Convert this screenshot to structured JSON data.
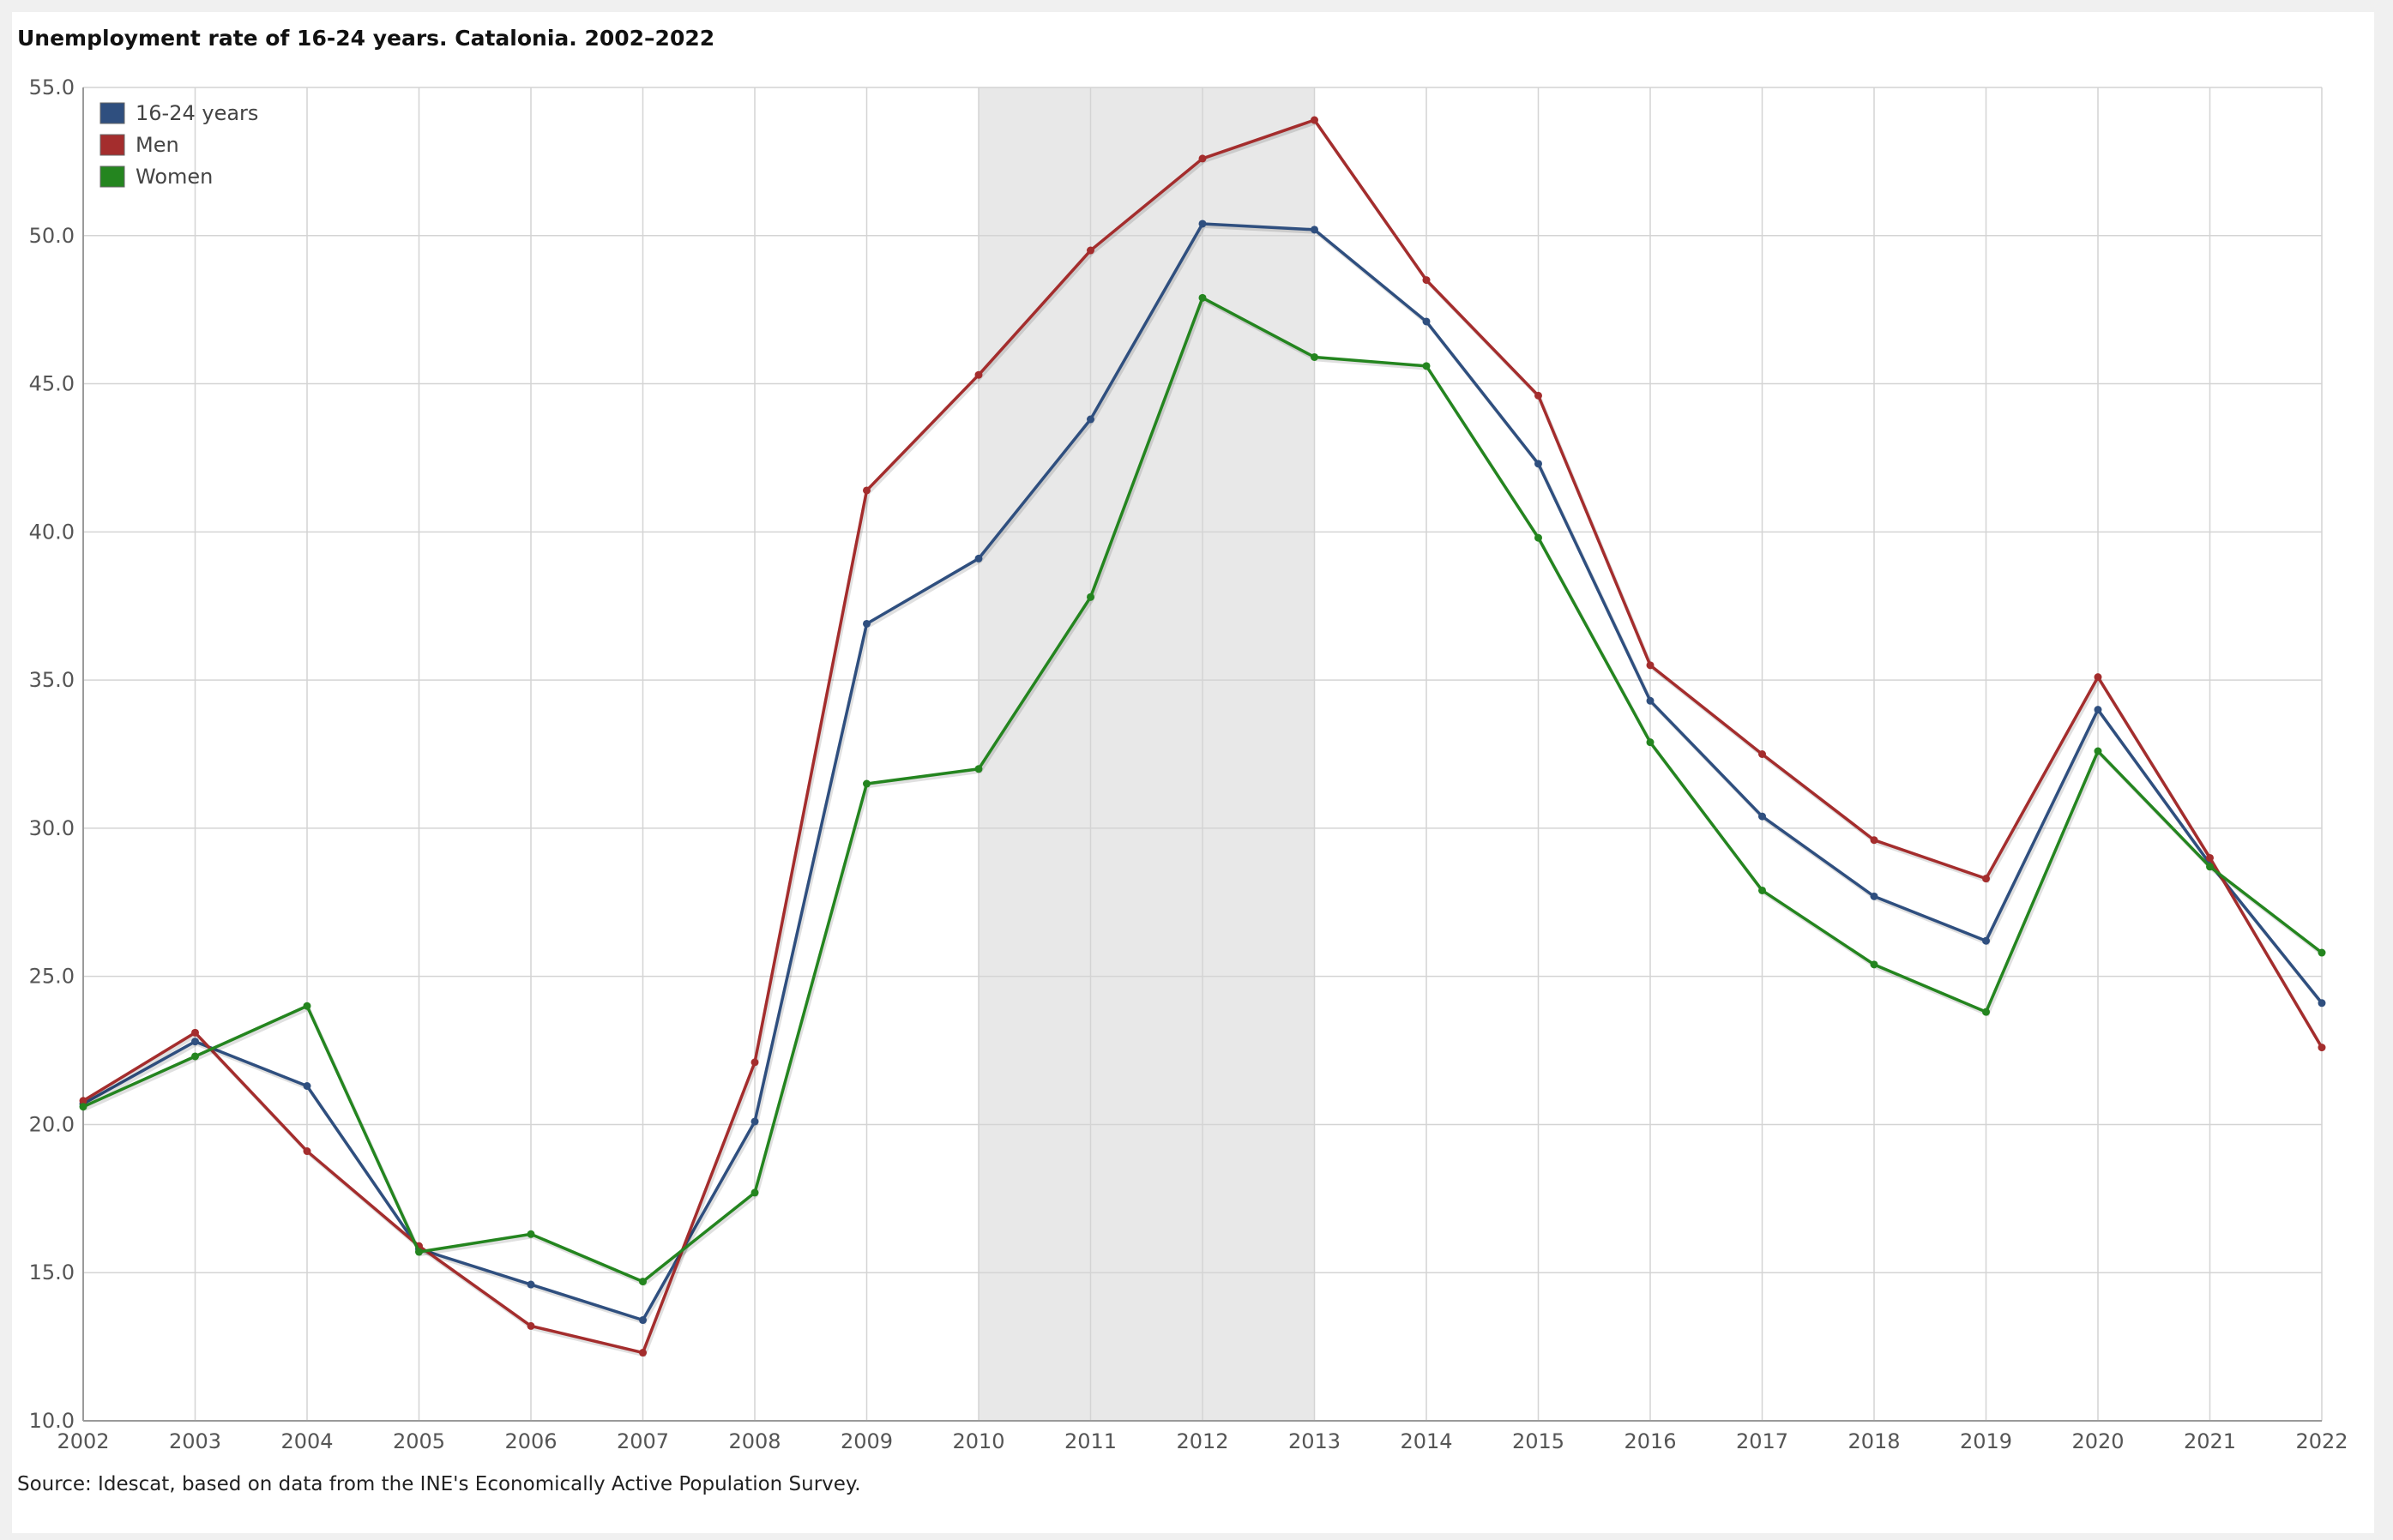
{
  "title": "Unemployment rate of 16-24 years. Catalonia. 2002–2022",
  "source": "Source: Idescat, based on data from the INE's Economically Active Population Survey.",
  "chart_data": {
    "type": "line",
    "title": "Unemployment rate of 16-24 years. Catalonia. 2002–2022",
    "x": [
      "2002",
      "2003",
      "2004",
      "2005",
      "2006",
      "2007",
      "2008",
      "2009",
      "2010",
      "2011",
      "2012",
      "2013",
      "2014",
      "2015",
      "2016",
      "2017",
      "2018",
      "2019",
      "2020",
      "2021",
      "2022"
    ],
    "y_ticks": [
      "10.0",
      "15.0",
      "20.0",
      "25.0",
      "30.0",
      "35.0",
      "40.0",
      "45.0",
      "50.0",
      "55.0"
    ],
    "ylim": [
      10,
      55
    ],
    "grid": true,
    "legend_position": "top-left",
    "shaded_region": {
      "from": "2010",
      "to": "2013",
      "color": "#e8e8e8"
    },
    "series": [
      {
        "name": "16-24 years",
        "color": "#2f4f7f",
        "values": [
          20.7,
          22.8,
          21.3,
          15.8,
          14.6,
          13.4,
          20.1,
          36.9,
          39.1,
          43.8,
          50.4,
          50.2,
          47.1,
          42.3,
          34.3,
          30.4,
          27.7,
          26.2,
          34.0,
          28.8,
          24.1
        ]
      },
      {
        "name": "Men",
        "color": "#a42d2d",
        "values": [
          20.8,
          23.1,
          19.1,
          15.9,
          13.2,
          12.3,
          22.1,
          41.4,
          45.3,
          49.5,
          52.6,
          53.9,
          48.5,
          44.6,
          35.5,
          32.5,
          29.6,
          28.3,
          35.1,
          29.0,
          22.6
        ]
      },
      {
        "name": "Women",
        "color": "#24851f",
        "values": [
          20.6,
          22.3,
          24.0,
          15.7,
          16.3,
          14.7,
          17.7,
          31.5,
          32.0,
          37.8,
          47.9,
          45.9,
          45.6,
          39.8,
          32.9,
          27.9,
          25.4,
          23.8,
          32.6,
          28.7,
          25.8
        ]
      }
    ]
  }
}
